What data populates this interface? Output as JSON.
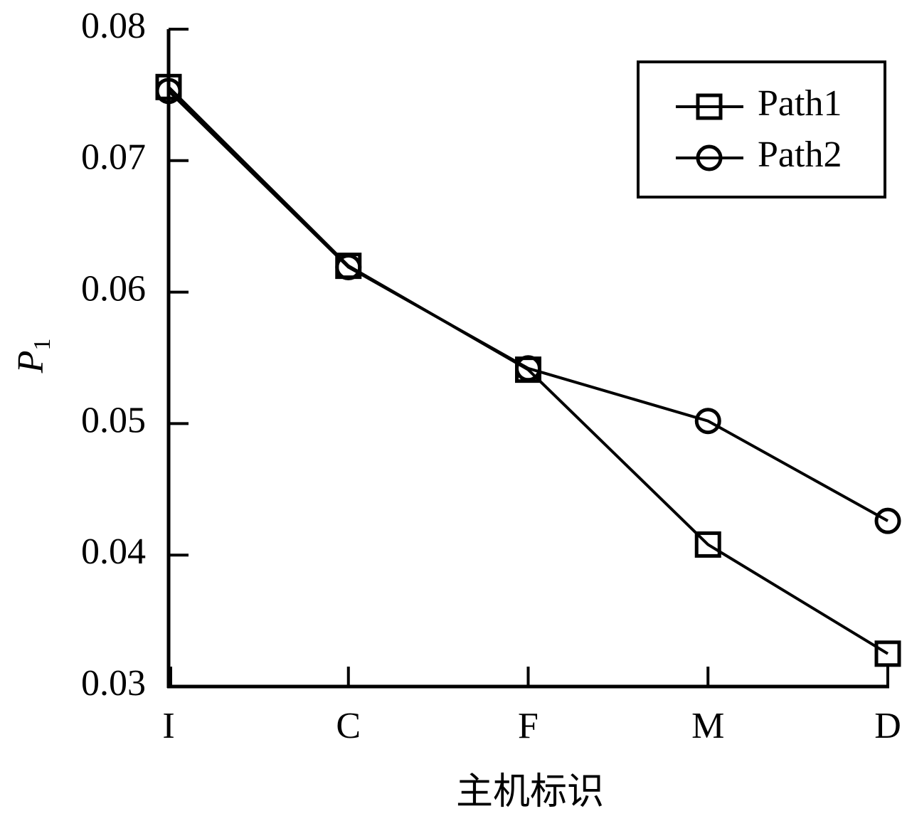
{
  "chart_data": {
    "type": "line",
    "xlabel": "主机标识",
    "ylabel": "P",
    "ylabel_subscript": "1",
    "categories": [
      "I",
      "C",
      "F",
      "M",
      "D"
    ],
    "series": [
      {
        "name": "Path1",
        "color": "#000000",
        "marker": "square",
        "values": [
          0.0756,
          0.062,
          0.0541,
          0.0408,
          0.0325
        ]
      },
      {
        "name": "Path2",
        "color": "#000000",
        "marker": "circle",
        "values": [
          0.0753,
          0.0619,
          0.0542,
          0.0502,
          0.0426
        ]
      }
    ],
    "ylim": [
      0.03,
      0.08
    ],
    "yticks": [
      0.03,
      0.04,
      0.05,
      0.06,
      0.07,
      0.08
    ],
    "legend": "upper-right"
  }
}
